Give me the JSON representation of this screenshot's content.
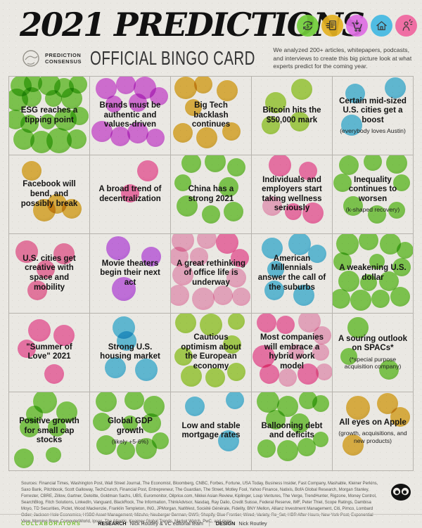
{
  "header": {
    "title": "2021 PREDICTIONS",
    "brand_line1": "PREDICTION",
    "brand_line2": "CONSENSUS",
    "subtitle": "OFFICIAL BINGO CARD",
    "description": "We analyzed 200+ articles, whitepapers, podcasts, and interviews to create this big picture look at what experts predict for the coming year.",
    "icons": [
      {
        "name": "money-cycle-icon",
        "color": "#72ce3b"
      },
      {
        "name": "flying-news-icon",
        "color": "#e5b222"
      },
      {
        "name": "shopping-cart-icon",
        "color": "#df6ee4"
      },
      {
        "name": "house-icon",
        "color": "#43b9e2"
      },
      {
        "name": "person-sparkle-icon",
        "color": "#f0659f"
      }
    ]
  },
  "palette": {
    "green": [
      "#68c92b",
      "#4fae1b"
    ],
    "lime": [
      "#9bd22c",
      "#7fbd15"
    ],
    "gold": [
      "#e2aa1c",
      "#c68d0c"
    ],
    "magenta": [
      "#d755e1",
      "#bd3ccf"
    ],
    "blue": [
      "#41bae4",
      "#24a2d3"
    ],
    "pink": [
      "#f75ba2",
      "#ee3a8d"
    ],
    "rose": [
      "#f2629b",
      "#e74486"
    ],
    "violet": [
      "#c357ef",
      "#ab3ce2"
    ],
    "softpink": [
      "#f39fc5",
      "#eb7cab"
    ]
  },
  "grid": {
    "rows": 5,
    "cols": 5,
    "cells": [
      {
        "title": "ESG reaches a tipping point",
        "subtitle": "",
        "color": "green",
        "blobs": [
          [
            15,
            12,
            15
          ],
          [
            30,
            8,
            13
          ],
          [
            50,
            10,
            16
          ],
          [
            68,
            14,
            14
          ],
          [
            86,
            10,
            13
          ],
          [
            10,
            30,
            16
          ],
          [
            28,
            26,
            14
          ],
          [
            55,
            28,
            12
          ],
          [
            78,
            28,
            15
          ],
          [
            8,
            55,
            14
          ],
          [
            25,
            60,
            13
          ],
          [
            48,
            58,
            11
          ],
          [
            70,
            55,
            16
          ],
          [
            88,
            50,
            13
          ],
          [
            18,
            80,
            15
          ],
          [
            40,
            84,
            16
          ],
          [
            62,
            82,
            18
          ],
          [
            84,
            80,
            14
          ]
        ]
      },
      {
        "title": "Brands must be authentic and values-driven",
        "subtitle": "",
        "color": "magenta",
        "blobs": [
          [
            20,
            15,
            15
          ],
          [
            45,
            10,
            14
          ],
          [
            68,
            14,
            16
          ],
          [
            86,
            25,
            13
          ],
          [
            30,
            35,
            12
          ],
          [
            60,
            33,
            13
          ],
          [
            15,
            70,
            15
          ],
          [
            38,
            76,
            14
          ],
          [
            60,
            72,
            15
          ],
          [
            82,
            78,
            13
          ]
        ]
      },
      {
        "title": "Big Tech backlash continues",
        "subtitle": "",
        "color": "gold",
        "blobs": [
          [
            18,
            14,
            16
          ],
          [
            40,
            10,
            13
          ],
          [
            70,
            18,
            15
          ],
          [
            28,
            40,
            12
          ],
          [
            15,
            72,
            14
          ],
          [
            45,
            78,
            15
          ],
          [
            75,
            70,
            13
          ]
        ]
      },
      {
        "title": "Bitcoin hits the $50,000 mark",
        "subtitle": "",
        "color": "lime",
        "blobs": [
          [
            62,
            16,
            15
          ],
          [
            30,
            33,
            15
          ],
          [
            24,
            62,
            13
          ],
          [
            60,
            58,
            14
          ]
        ]
      },
      {
        "title": "Certain mid-sized U.S. cities get a boost",
        "subtitle": "(everybody loves Austin)",
        "color": "blue",
        "blobs": [
          [
            28,
            22,
            14
          ],
          [
            78,
            14,
            15
          ],
          [
            24,
            62,
            15
          ]
        ]
      },
      {
        "title": "Facebook will bend, and possibly break",
        "subtitle": "",
        "color": "gold",
        "blobs": [
          [
            28,
            20,
            14
          ],
          [
            44,
            70,
            16
          ],
          [
            60,
            62,
            14
          ],
          [
            78,
            68,
            14
          ]
        ]
      },
      {
        "title": "A broad trend of decentralization",
        "subtitle": "",
        "color": "pink",
        "blobs": [
          [
            72,
            20,
            15
          ],
          [
            50,
            48,
            13
          ]
        ]
      },
      {
        "title": "China has a strong 2021",
        "subtitle": "",
        "color": "green",
        "blobs": [
          [
            25,
            10,
            14
          ],
          [
            55,
            8,
            15
          ],
          [
            82,
            15,
            13
          ],
          [
            15,
            35,
            12
          ],
          [
            72,
            40,
            14
          ],
          [
            20,
            65,
            15
          ],
          [
            50,
            75,
            13
          ],
          [
            78,
            72,
            14
          ]
        ]
      },
      {
        "title": "Individuals and employers start taking wellness seriously",
        "subtitle": "",
        "color": "pink",
        "blobs": [
          [
            35,
            12,
            16
          ],
          [
            70,
            20,
            13
          ],
          [
            25,
            65,
            14,
            "softpink"
          ],
          [
            52,
            72,
            12
          ],
          [
            76,
            74,
            15
          ]
        ]
      },
      {
        "title": "Inequality continues to worsen",
        "subtitle": "(k-shaped recovery)",
        "color": "green",
        "blobs": [
          [
            20,
            12,
            14
          ],
          [
            50,
            8,
            13
          ],
          [
            80,
            10,
            15
          ],
          [
            12,
            35,
            13
          ],
          [
            86,
            35,
            12
          ],
          [
            25,
            65,
            14
          ],
          [
            55,
            75,
            13
          ],
          [
            80,
            70,
            12
          ]
        ]
      },
      {
        "title": "U.S. cities get creative with space and mobility",
        "subtitle": "",
        "color": "rose",
        "blobs": [
          [
            22,
            22,
            16
          ],
          [
            68,
            25,
            15
          ],
          [
            46,
            45,
            13
          ],
          [
            35,
            72,
            14
          ]
        ]
      },
      {
        "title": "Movie theaters begin their next act",
        "subtitle": "",
        "color": "violet",
        "blobs": [
          [
            35,
            18,
            17
          ],
          [
            76,
            28,
            14
          ],
          [
            42,
            70,
            17
          ]
        ]
      },
      {
        "title": "A great rethinking of office life is underway",
        "subtitle": "",
        "color": "softpink",
        "blobs": [
          [
            15,
            8,
            16
          ],
          [
            45,
            6,
            14
          ],
          [
            70,
            10,
            16,
            "pink"
          ],
          [
            10,
            28,
            14
          ],
          [
            35,
            28,
            13
          ],
          [
            86,
            30,
            13,
            "pink"
          ],
          [
            15,
            52,
            15
          ],
          [
            82,
            55,
            14
          ],
          [
            10,
            78,
            15
          ],
          [
            40,
            82,
            16
          ],
          [
            65,
            78,
            14
          ],
          [
            88,
            80,
            13
          ]
        ]
      },
      {
        "title": "American Millennials answer the call of the suburbs",
        "subtitle": "",
        "color": "blue",
        "blobs": [
          [
            25,
            18,
            15
          ],
          [
            60,
            12,
            16
          ],
          [
            82,
            25,
            13
          ],
          [
            30,
            45,
            12
          ],
          [
            28,
            72,
            14
          ],
          [
            65,
            78,
            15
          ]
        ]
      },
      {
        "title": "A weakening U.S. dollar",
        "subtitle": "",
        "color": "green",
        "blobs": [
          [
            18,
            12,
            16
          ],
          [
            45,
            8,
            14
          ],
          [
            72,
            12,
            15
          ],
          [
            90,
            20,
            12
          ],
          [
            12,
            35,
            13
          ],
          [
            86,
            42,
            13
          ],
          [
            20,
            60,
            15
          ],
          [
            45,
            62,
            12
          ],
          [
            70,
            60,
            14
          ],
          [
            10,
            82,
            14
          ],
          [
            35,
            84,
            15
          ],
          [
            60,
            82,
            13
          ],
          [
            84,
            80,
            14
          ],
          [
            55,
            35,
            11
          ]
        ]
      },
      {
        "title": "\"Summer of Love\" 2021",
        "subtitle": "",
        "color": "pink",
        "blobs": [
          [
            38,
            22,
            16
          ],
          [
            68,
            28,
            15
          ],
          [
            22,
            45,
            13
          ],
          [
            56,
            78,
            14
          ]
        ]
      },
      {
        "title": "Strong U.S. housing market",
        "subtitle": "",
        "color": "blue",
        "blobs": [
          [
            42,
            18,
            16
          ],
          [
            46,
            35,
            14
          ],
          [
            32,
            70,
            15
          ],
          [
            70,
            72,
            16
          ]
        ]
      },
      {
        "title": "Cautious optimism about the European economy",
        "subtitle": "",
        "color": "lime",
        "blobs": [
          [
            18,
            12,
            15
          ],
          [
            50,
            15,
            16
          ],
          [
            82,
            10,
            12
          ],
          [
            76,
            40,
            13
          ],
          [
            16,
            55,
            13
          ],
          [
            25,
            80,
            15
          ],
          [
            55,
            82,
            14
          ],
          [
            82,
            75,
            13
          ]
        ]
      },
      {
        "title": "Most companies will embrace a hybrid work model",
        "subtitle": "",
        "color": "softpink",
        "blobs": [
          [
            18,
            12,
            14,
            "pink"
          ],
          [
            42,
            15,
            13,
            "pink"
          ],
          [
            72,
            10,
            16
          ],
          [
            88,
            28,
            13
          ],
          [
            15,
            55,
            16,
            "pink"
          ],
          [
            86,
            50,
            12
          ],
          [
            22,
            78,
            14,
            "pink"
          ],
          [
            45,
            82,
            13
          ],
          [
            70,
            78,
            15,
            "pink"
          ],
          [
            55,
            50,
            11
          ],
          [
            90,
            75,
            12
          ]
        ]
      },
      {
        "title": "A souring outlook on SPACs*",
        "subtitle": "(*special purpose acquisition company)",
        "color": "green",
        "blobs": [
          [
            32,
            18,
            15
          ],
          [
            20,
            55,
            12
          ],
          [
            70,
            72,
            14
          ]
        ]
      },
      {
        "title": "Positive growth for small cap stocks",
        "subtitle": "",
        "color": "green",
        "blobs": [
          [
            45,
            12,
            17
          ],
          [
            72,
            25,
            15
          ],
          [
            25,
            45,
            14
          ],
          [
            60,
            45,
            13
          ],
          [
            32,
            28,
            12
          ],
          [
            18,
            85,
            14
          ],
          [
            55,
            80,
            11
          ]
        ]
      },
      {
        "title": "Global GDP growth",
        "subtitle": "(likely +5-6%)",
        "color": "green",
        "blobs": [
          [
            20,
            12,
            15
          ],
          [
            55,
            10,
            14
          ],
          [
            80,
            18,
            15
          ],
          [
            15,
            38,
            13
          ],
          [
            76,
            40,
            14
          ],
          [
            20,
            68,
            14
          ],
          [
            45,
            75,
            13
          ],
          [
            70,
            72,
            15
          ],
          [
            88,
            62,
            12
          ],
          [
            50,
            40,
            11
          ]
        ]
      },
      {
        "title": "Low and stable mortgage rates",
        "subtitle": "",
        "color": "blue",
        "blobs": [
          [
            30,
            18,
            14
          ],
          [
            80,
            10,
            13
          ],
          [
            72,
            62,
            15
          ]
        ]
      },
      {
        "title": "Ballooning debt and deficits",
        "subtitle": "",
        "color": "green",
        "blobs": [
          [
            20,
            12,
            16
          ],
          [
            45,
            18,
            15
          ],
          [
            70,
            10,
            13
          ],
          [
            86,
            15,
            12
          ],
          [
            30,
            35,
            14
          ],
          [
            60,
            40,
            14
          ],
          [
            18,
            72,
            13
          ],
          [
            45,
            75,
            15
          ],
          [
            68,
            70,
            13
          ],
          [
            86,
            60,
            11
          ]
        ]
      },
      {
        "title": "All eyes on Apple",
        "subtitle": "(growth, acquisitions, and new products)",
        "color": "gold",
        "blobs": [
          [
            32,
            20,
            17
          ],
          [
            68,
            15,
            15
          ],
          [
            84,
            32,
            14
          ],
          [
            25,
            68,
            15
          ]
        ]
      }
    ]
  },
  "footer": {
    "sources": "Sources: Financial Times, Washington Post, Wall Street Journal, The Economist, Bloomberg, CNBC, Forbes, Fortune, USA Today, Business Insider, Fast Company, Mashable, Kleiner Perkins, Saxo Bank, Pitchbook, Scott Galloway, TechCrunch, Financial Post, Entrepreneur, The Guardian, The Street, Motley Fool, Yahoo Finance, Natixis, BofA Global Research, Morgan Stanley, Forrester, CBRE, Zillow, Gartner, Deloitte, Goldman Sachs, UBS, Euromonitor, Oilprice.com, Nikkei Asian Review, Kiplinger, Loup Ventures, The Verge, TrendHunter, Rigzone, Money Control, SearchBlog, Fitch Solutions, LinkedIn, Vanguard, BlackRock, The Information, ThinkAdvisor, Nasdaq, Ray Dalio, Credit Suisse, Federal Reserve, IMF, Peter Thiel, Scope Ratings, Dambisa Moyo, TD Securities, Pictet, Wood Mackenzie, Franklin Templeton, ING, JPMorgan, NatWest, Société Générale, Fidelity, BNY Mellon, Allianz Investment Management, Citi, Pimco, Lombard Odier, Jackson Hole Economics, HSBC Asset Management, Mizuho, Neuberger Berman, DWS, Shopify, Blue Frontier, Wired, Variety, Re_Set, HBR After Hours, New York Post, Exponential View, Morning Brew, ComputerWorld, Ipsos, The Atlantic, Kearney Global Trends, Market Watch, PwC, and more.",
    "collaborators_label": "COLLABORATORS",
    "research_label": "RESEARCH",
    "research_value": "Nick Routley & VC editorial team",
    "divider": "|",
    "design_label": "DESIGN",
    "design_value": "Nick Routley",
    "collab_color": "#76bf34"
  }
}
